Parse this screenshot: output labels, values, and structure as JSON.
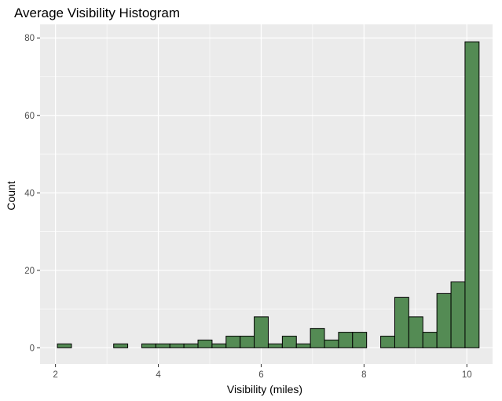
{
  "chart_data": {
    "type": "bar",
    "title": "Average Visibility Histogram",
    "xlabel": "Visibility (miles)",
    "ylabel": "Count",
    "x_ticks": [
      2,
      4,
      6,
      8,
      10
    ],
    "y_ticks": [
      0,
      20,
      40,
      60,
      80
    ],
    "xlim": [
      1.7,
      10.5
    ],
    "ylim": [
      -4.2,
      83.5
    ],
    "bin_width": 0.2733,
    "bin_centers": [
      2.174,
      2.448,
      2.721,
      2.994,
      3.268,
      3.541,
      3.814,
      4.088,
      4.361,
      4.634,
      4.908,
      5.181,
      5.454,
      5.728,
      6.001,
      6.274,
      6.548,
      6.821,
      7.094,
      7.368,
      7.641,
      7.914,
      8.188,
      8.461,
      8.734,
      9.008,
      9.281,
      9.554,
      9.828,
      10.101
    ],
    "values": [
      1,
      0,
      0,
      0,
      1,
      0,
      1,
      1,
      1,
      1,
      2,
      1,
      3,
      3,
      8,
      1,
      3,
      1,
      5,
      2,
      4,
      4,
      0,
      3,
      13,
      8,
      4,
      14,
      17,
      79
    ],
    "bar_fill": "#548b54",
    "bar_stroke": "#000000",
    "panel_background": "#ebebeb",
    "grid": true,
    "grid_color": "#ffffff"
  }
}
